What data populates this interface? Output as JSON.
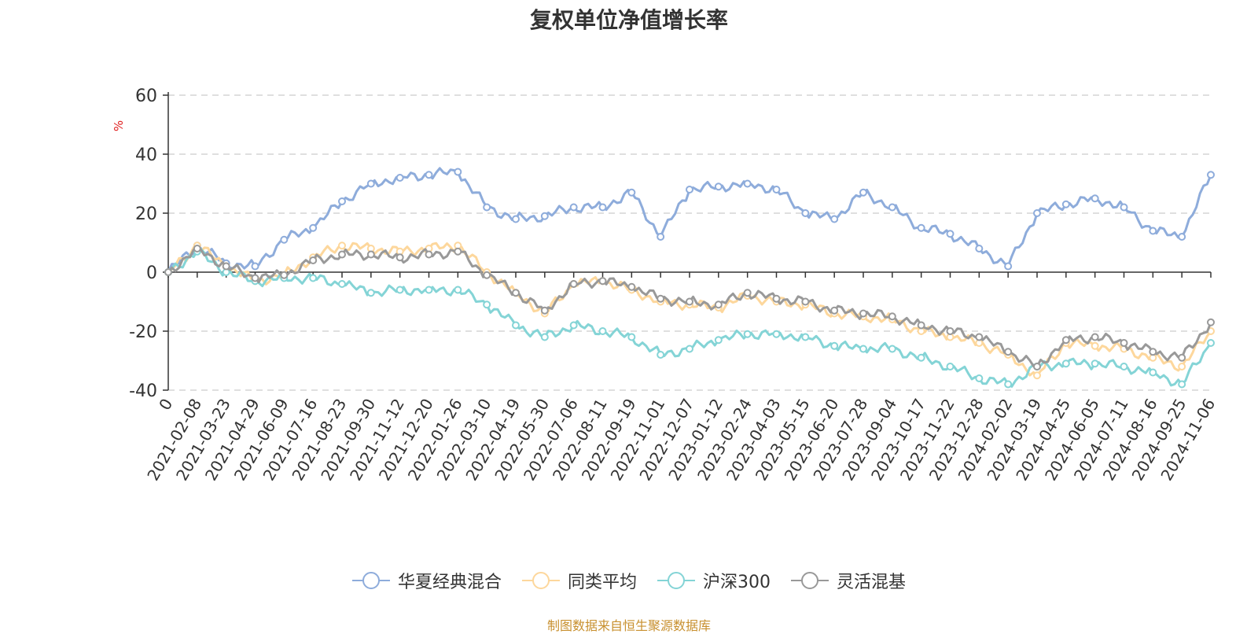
{
  "chart_data": {
    "type": "line",
    "title": "复权单位净值增长率",
    "ylabel": "%",
    "ylim": [
      -40,
      60
    ],
    "yticks": [
      -40,
      -20,
      0,
      20,
      40,
      60
    ],
    "grid": true,
    "legend_position": "bottom-center",
    "categories": [
      "0",
      "2021-02-08",
      "2021-03-23",
      "2021-04-29",
      "2021-06-09",
      "2021-07-16",
      "2021-08-23",
      "2021-09-30",
      "2021-11-12",
      "2021-12-20",
      "2022-01-26",
      "2022-03-10",
      "2022-04-19",
      "2022-05-30",
      "2022-07-06",
      "2022-08-11",
      "2022-09-19",
      "2022-11-01",
      "2022-12-07",
      "2023-01-12",
      "2023-02-24",
      "2023-04-03",
      "2023-05-15",
      "2023-06-20",
      "2023-07-28",
      "2023-09-04",
      "2023-10-17",
      "2023-11-22",
      "2023-12-28",
      "2024-02-02",
      "2024-03-19",
      "2024-04-25",
      "2024-06-05",
      "2024-07-11",
      "2024-08-16",
      "2024-09-25",
      "2024-11-06"
    ],
    "series": [
      {
        "name": "华夏经典混合",
        "color": "#8eacdb",
        "values": [
          0,
          9,
          3,
          2,
          11,
          15,
          24,
          30,
          32,
          33,
          34,
          22,
          18,
          19,
          22,
          22,
          27,
          12,
          28,
          29,
          30,
          28,
          20,
          18,
          27,
          22,
          15,
          13,
          8,
          2,
          20,
          23,
          25,
          22,
          14,
          12,
          33
        ]
      },
      {
        "name": "同类平均",
        "color": "#fdd79c",
        "values": [
          0,
          9,
          2,
          -3,
          -1,
          5,
          9,
          8,
          7,
          8,
          9,
          0,
          -7,
          -14,
          -4,
          -3,
          -6,
          -10,
          -11,
          -12,
          -8,
          -10,
          -11,
          -14,
          -15,
          -16,
          -20,
          -22,
          -24,
          -28,
          -35,
          -24,
          -25,
          -26,
          -29,
          -32,
          -20
        ]
      },
      {
        "name": "沪深300",
        "color": "#84d4d6",
        "values": [
          0,
          7,
          0,
          -3,
          -2,
          -2,
          -4,
          -7,
          -6,
          -6,
          -6,
          -11,
          -18,
          -22,
          -18,
          -20,
          -22,
          -28,
          -26,
          -23,
          -21,
          -21,
          -22,
          -25,
          -26,
          -26,
          -29,
          -32,
          -36,
          -38,
          -32,
          -31,
          -31,
          -32,
          -34,
          -38,
          -24
        ]
      },
      {
        "name": "灵活混基",
        "color": "#999999",
        "values": [
          0,
          8,
          2,
          -2,
          -1,
          4,
          6,
          6,
          5,
          6,
          7,
          -1,
          -7,
          -13,
          -4,
          -3,
          -5,
          -9,
          -10,
          -11,
          -7,
          -9,
          -10,
          -13,
          -14,
          -15,
          -18,
          -20,
          -22,
          -27,
          -32,
          -23,
          -22,
          -24,
          -27,
          -29,
          -17
        ]
      }
    ]
  },
  "legend": {
    "items": [
      "华夏经典混合",
      "同类平均",
      "沪深300",
      "灵活混基"
    ]
  },
  "source": "制图数据来自恒生聚源数据库"
}
